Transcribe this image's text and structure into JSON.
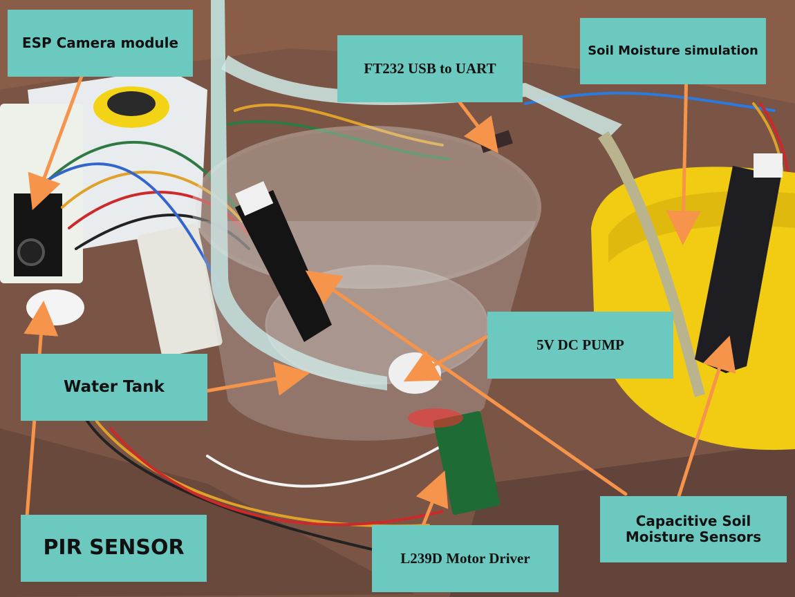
{
  "labels": {
    "esp_camera": "ESP Camera module",
    "ft232": "FT232 USB to UART",
    "soil_sim": "Soil Moisture simulation",
    "water_tank": "Water Tank",
    "pump": "5V DC PUMP",
    "pir": "PIR SENSOR",
    "motor_driver": "L239D Motor Driver",
    "capacitive_sensors": "Capacitive Soil Moisture Sensors"
  },
  "colors": {
    "label_bg": "#6cc9c0",
    "arrow": "#f5944a",
    "bowl": "#f2cc12",
    "table": "#8a5a44"
  }
}
